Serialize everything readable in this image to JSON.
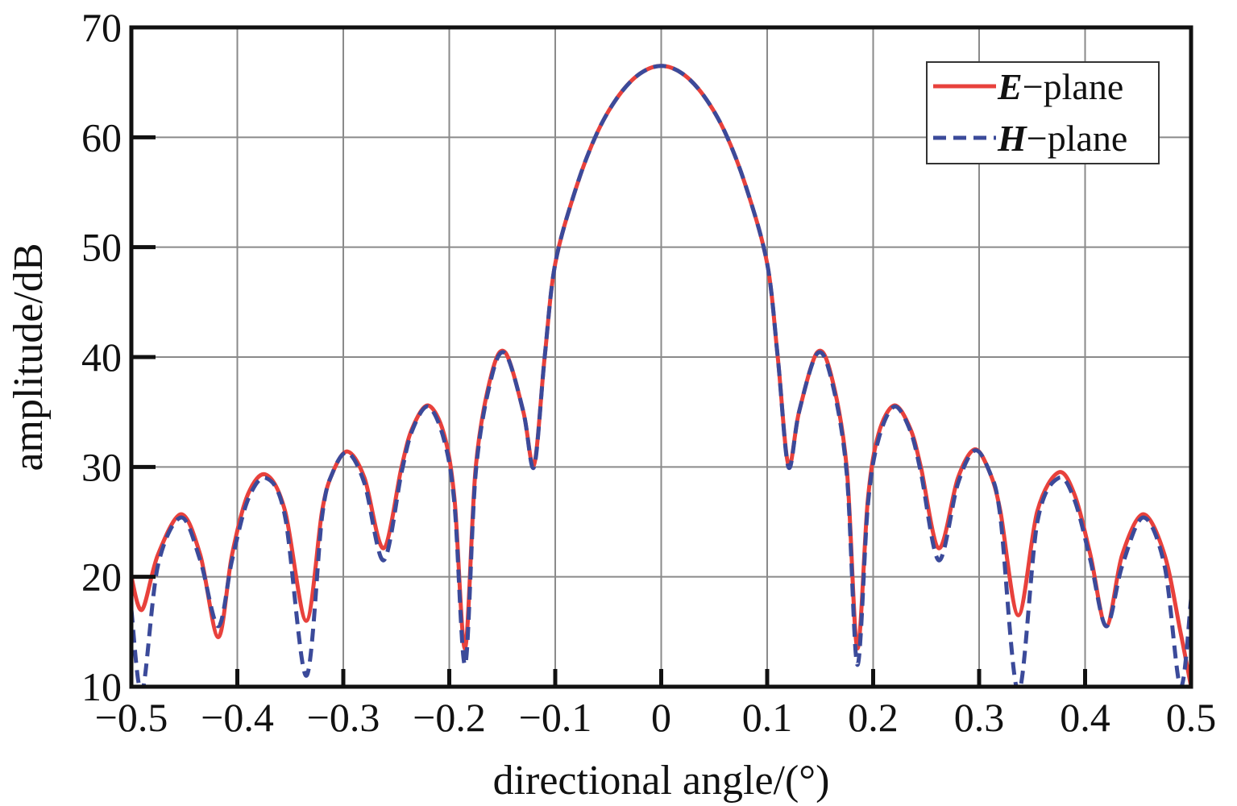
{
  "chart_data": {
    "type": "line",
    "xlabel": "directional angle/(°)",
    "ylabel": "amplitude/dB",
    "xlim": [
      -0.5,
      0.5
    ],
    "ylim": [
      10,
      70
    ],
    "xticks": [
      -0.5,
      -0.4,
      -0.3,
      -0.2,
      -0.1,
      0,
      0.1,
      0.2,
      0.3,
      0.4,
      0.5
    ],
    "xtick_labels": [
      "−0.5",
      "−0.4",
      "−0.3",
      "−0.2",
      "−0.1",
      "0",
      "0.1",
      "0.2",
      "0.3",
      "0.4",
      "0.5"
    ],
    "yticks": [
      10,
      20,
      30,
      40,
      50,
      60,
      70
    ],
    "ytick_labels": [
      "10",
      "20",
      "30",
      "40",
      "50",
      "60",
      "70"
    ],
    "grid": true,
    "legend_position": "top-right",
    "series": [
      {
        "name": "E−plane",
        "legend_em": "E",
        "legend_rest": "−plane",
        "color": "#e8413c",
        "dash": "solid",
        "x": [
          -0.5,
          -0.49,
          -0.475,
          -0.453,
          -0.435,
          -0.418,
          -0.405,
          -0.39,
          -0.373,
          -0.355,
          -0.335,
          -0.32,
          -0.31,
          -0.296,
          -0.28,
          -0.262,
          -0.245,
          -0.235,
          -0.22,
          -0.205,
          -0.195,
          -0.185,
          -0.175,
          -0.16,
          -0.147,
          -0.13,
          -0.12,
          -0.11,
          -0.1,
          -0.08,
          -0.06,
          -0.04,
          -0.02,
          0,
          0.02,
          0.04,
          0.06,
          0.08,
          0.1,
          0.11,
          0.12,
          0.13,
          0.147,
          0.16,
          0.175,
          0.185,
          0.195,
          0.205,
          0.22,
          0.235,
          0.245,
          0.262,
          0.28,
          0.296,
          0.31,
          0.32,
          0.337,
          0.355,
          0.375,
          0.39,
          0.405,
          0.42,
          0.435,
          0.455,
          0.475,
          0.49,
          0.5
        ],
        "y": [
          20,
          17,
          22,
          25.7,
          22,
          14.5,
          22,
          27.5,
          29.3,
          26,
          16,
          26,
          29.5,
          31.4,
          29,
          22.6,
          30,
          33.5,
          35.6,
          33,
          27,
          13.5,
          30,
          38.5,
          40.4,
          35,
          30.2,
          40,
          48.5,
          55.5,
          60.5,
          63.8,
          65.8,
          66.5,
          65.8,
          63.8,
          60.5,
          55.5,
          48.5,
          40,
          30.2,
          35,
          40.4,
          38.5,
          30,
          13.5,
          27,
          33,
          35.6,
          33.5,
          30,
          22.6,
          29,
          31.6,
          29.5,
          26,
          16.5,
          26,
          29.5,
          27.5,
          22,
          15.5,
          22,
          25.7,
          22,
          15,
          10
        ]
      },
      {
        "name": "H−plane",
        "legend_em": "H",
        "legend_rest": "−plane",
        "color": "#3b4a9a",
        "dash": "dashed",
        "x": [
          -0.5,
          -0.49,
          -0.475,
          -0.453,
          -0.435,
          -0.418,
          -0.405,
          -0.39,
          -0.373,
          -0.355,
          -0.335,
          -0.32,
          -0.31,
          -0.296,
          -0.28,
          -0.262,
          -0.245,
          -0.235,
          -0.22,
          -0.205,
          -0.195,
          -0.185,
          -0.175,
          -0.16,
          -0.147,
          -0.13,
          -0.12,
          -0.11,
          -0.1,
          -0.08,
          -0.06,
          -0.04,
          -0.02,
          0,
          0.02,
          0.04,
          0.06,
          0.08,
          0.1,
          0.11,
          0.12,
          0.13,
          0.147,
          0.16,
          0.175,
          0.185,
          0.195,
          0.205,
          0.22,
          0.235,
          0.245,
          0.262,
          0.28,
          0.296,
          0.31,
          0.32,
          0.337,
          0.355,
          0.375,
          0.39,
          0.405,
          0.42,
          0.435,
          0.455,
          0.475,
          0.49,
          0.5
        ],
        "y": [
          17,
          9.5,
          21,
          25.4,
          21.5,
          15.5,
          21.5,
          27,
          29,
          25.5,
          11,
          25.5,
          29.5,
          31.3,
          28.5,
          21.5,
          29.5,
          33.3,
          35.5,
          32.5,
          26.5,
          12,
          29.5,
          38.2,
          40.3,
          35,
          30,
          40,
          48.5,
          55.5,
          60.5,
          63.8,
          65.8,
          66.5,
          65.8,
          63.8,
          60.5,
          55.5,
          48.5,
          40,
          30,
          35,
          40.3,
          38.2,
          29.5,
          12,
          26.5,
          32.5,
          35.5,
          33.3,
          29.5,
          21.5,
          28.5,
          31.5,
          29.5,
          25.5,
          9.5,
          25,
          29,
          27,
          21.5,
          15.5,
          21,
          25.4,
          21,
          10,
          18
        ]
      }
    ]
  }
}
